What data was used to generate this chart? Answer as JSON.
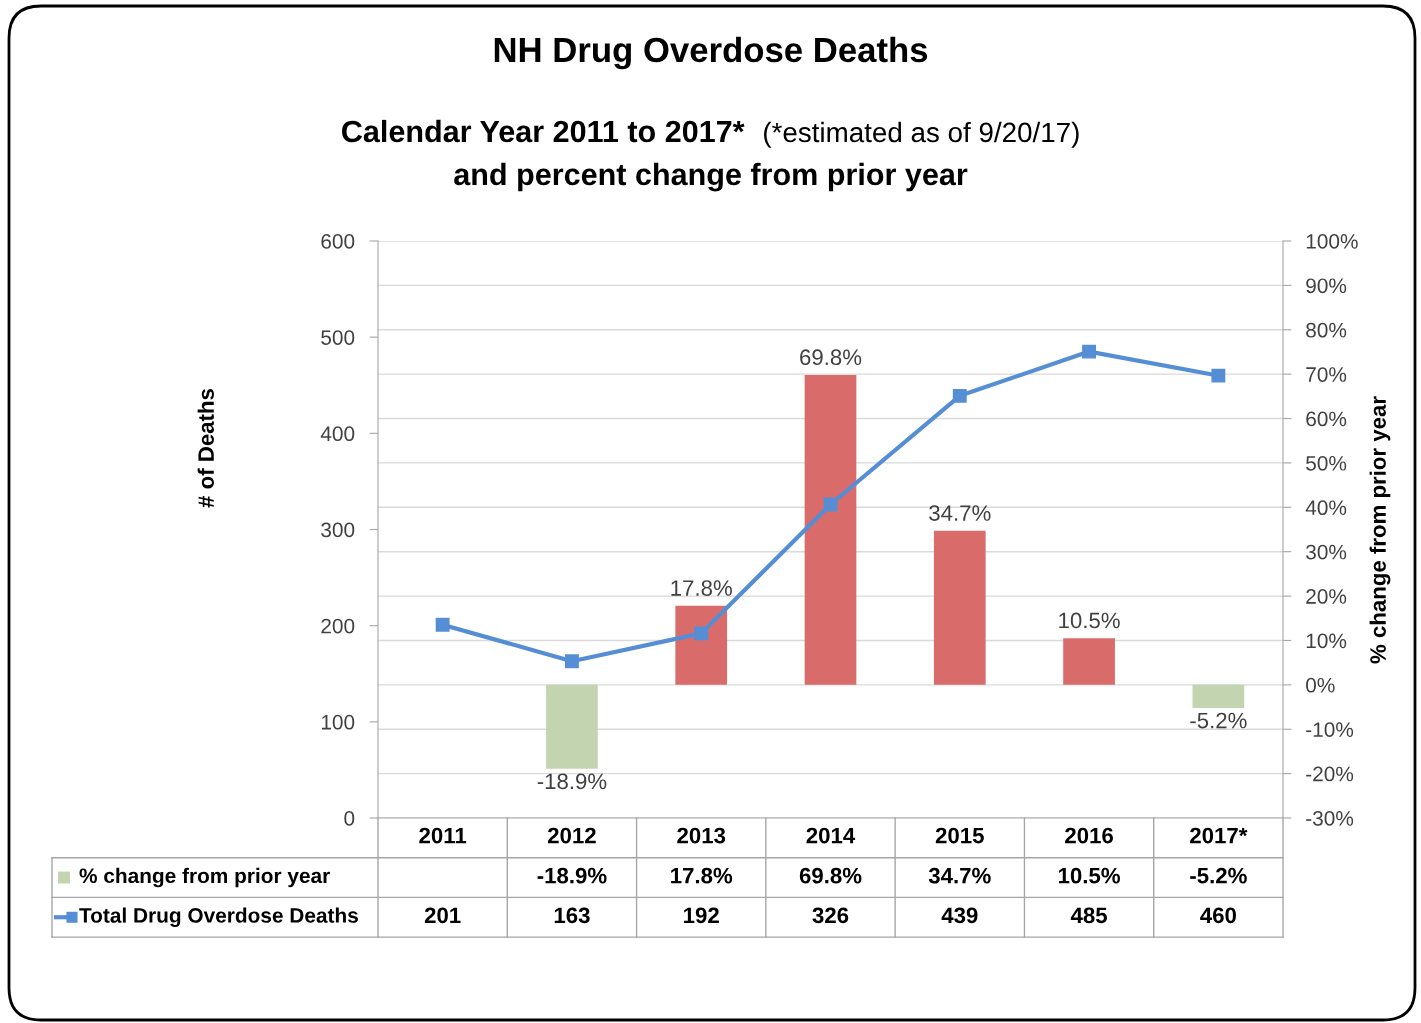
{
  "chart_data": {
    "type": "bar",
    "title": "NH Drug Overdose Deaths",
    "subtitle": "Calendar Year 2011 to 2017*",
    "annotations": [
      "(*estimated as of 9/20/17)",
      "and percent change from prior year"
    ],
    "categories": [
      "2011",
      "2012",
      "2013",
      "2014",
      "2015",
      "2016",
      "2017*"
    ],
    "series": [
      {
        "name": "% change from prior year",
        "axis": "y2",
        "values": [
          null,
          -18.9,
          17.8,
          69.8,
          34.7,
          10.5,
          -5.2
        ],
        "colors": [
          null,
          "#c3d5b0",
          "#d96b6b",
          "#d96b6b",
          "#d96b6b",
          "#d96b6b",
          "#c3d5b0"
        ],
        "value_labels": [
          null,
          "-18.9%",
          "17.8%",
          "69.8%",
          "34.7%",
          "10.5%",
          "-5.2%"
        ]
      },
      {
        "name": "Total Drug Overdose Deaths",
        "type": "line",
        "color": "#558ed5",
        "values": [
          201,
          163,
          192,
          326,
          439,
          485,
          460
        ],
        "value_labels": [
          "201",
          "163",
          "192",
          "326",
          "439",
          "485",
          "460"
        ]
      }
    ],
    "marker": "square",
    "legend": "bottom left",
    "ylabel": "# of Deaths",
    "y2label": "% change from prior year",
    "ylim": [
      0,
      600
    ],
    "yticks": [
      0,
      100,
      200,
      300,
      400,
      500,
      600
    ],
    "y2lim": [
      -30,
      100
    ],
    "y2ticks": [
      {
        "value": -30,
        "label": "-30%"
      },
      {
        "value": -20,
        "label": "-20%"
      },
      {
        "value": -10,
        "label": "-10%"
      },
      {
        "value": 0,
        "label": "0%"
      },
      {
        "value": 10,
        "label": "10%"
      },
      {
        "value": 20,
        "label": "20%"
      },
      {
        "value": 30,
        "label": "30%"
      },
      {
        "value": 40,
        "label": "40%"
      },
      {
        "value": 50,
        "label": "50%"
      },
      {
        "value": 60,
        "label": "60%"
      },
      {
        "value": 70,
        "label": "70%"
      },
      {
        "value": 80,
        "label": "80%"
      },
      {
        "value": 90,
        "label": "90%"
      },
      {
        "value": 100,
        "label": "100%"
      }
    ],
    "grid": "y2"
  }
}
